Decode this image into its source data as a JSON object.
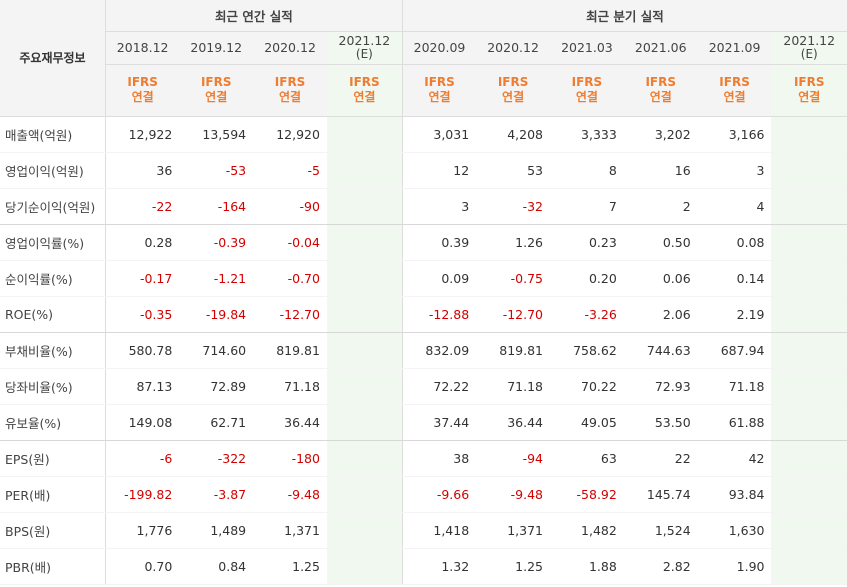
{
  "header": {
    "row_label": "주요재무정보",
    "annual_title": "최근 연간 실적",
    "quarter_title": "최근 분기 실적",
    "annual_periods": [
      {
        "label": "2018.12",
        "estimate": false
      },
      {
        "label": "2019.12",
        "estimate": false
      },
      {
        "label": "2020.12",
        "estimate": false
      },
      {
        "label": "2021.12",
        "est_mark": "(E)",
        "estimate": true
      }
    ],
    "quarter_periods": [
      {
        "label": "2020.09",
        "estimate": false
      },
      {
        "label": "2020.12",
        "estimate": false
      },
      {
        "label": "2021.03",
        "estimate": false
      },
      {
        "label": "2021.06",
        "estimate": false
      },
      {
        "label": "2021.09",
        "estimate": false
      },
      {
        "label": "2021.12",
        "est_mark": "(E)",
        "estimate": true
      }
    ],
    "standard_line1": "IFRS",
    "standard_line2": "연결"
  },
  "colors": {
    "negative": "#d30000",
    "standard": "#ee7d31",
    "estimate_bg": "#f1f8ef"
  },
  "rows": [
    {
      "label": "매출액(억원)",
      "annual": [
        "12,922",
        "13,594",
        "12,920",
        ""
      ],
      "quarter": [
        "3,031",
        "4,208",
        "3,333",
        "3,202",
        "3,166",
        ""
      ]
    },
    {
      "label": "영업이익(억원)",
      "annual": [
        "36",
        "-53",
        "-5",
        ""
      ],
      "quarter": [
        "12",
        "53",
        "8",
        "16",
        "3",
        ""
      ]
    },
    {
      "label": "당기순이익(억원)",
      "annual": [
        "-22",
        "-164",
        "-90",
        ""
      ],
      "quarter": [
        "3",
        "-32",
        "7",
        "2",
        "4",
        ""
      ]
    },
    {
      "label": "영업이익률(%)",
      "annual": [
        "0.28",
        "-0.39",
        "-0.04",
        ""
      ],
      "quarter": [
        "0.39",
        "1.26",
        "0.23",
        "0.50",
        "0.08",
        ""
      ]
    },
    {
      "label": "순이익률(%)",
      "annual": [
        "-0.17",
        "-1.21",
        "-0.70",
        ""
      ],
      "quarter": [
        "0.09",
        "-0.75",
        "0.20",
        "0.06",
        "0.14",
        ""
      ]
    },
    {
      "label": "ROE(%)",
      "annual": [
        "-0.35",
        "-19.84",
        "-12.70",
        ""
      ],
      "quarter": [
        "-12.88",
        "-12.70",
        "-3.26",
        "2.06",
        "2.19",
        ""
      ]
    },
    {
      "label": "부채비율(%)",
      "annual": [
        "580.78",
        "714.60",
        "819.81",
        ""
      ],
      "quarter": [
        "832.09",
        "819.81",
        "758.62",
        "744.63",
        "687.94",
        ""
      ]
    },
    {
      "label": "당좌비율(%)",
      "annual": [
        "87.13",
        "72.89",
        "71.18",
        ""
      ],
      "quarter": [
        "72.22",
        "71.18",
        "70.22",
        "72.93",
        "71.18",
        ""
      ]
    },
    {
      "label": "유보율(%)",
      "annual": [
        "149.08",
        "62.71",
        "36.44",
        ""
      ],
      "quarter": [
        "37.44",
        "36.44",
        "49.05",
        "53.50",
        "61.88",
        ""
      ]
    },
    {
      "label": "EPS(원)",
      "annual": [
        "-6",
        "-322",
        "-180",
        ""
      ],
      "quarter": [
        "38",
        "-94",
        "63",
        "22",
        "42",
        ""
      ]
    },
    {
      "label": "PER(배)",
      "annual": [
        "-199.82",
        "-3.87",
        "-9.48",
        ""
      ],
      "quarter": [
        "-9.66",
        "-9.48",
        "-58.92",
        "145.74",
        "93.84",
        ""
      ]
    },
    {
      "label": "BPS(원)",
      "annual": [
        "1,776",
        "1,489",
        "1,371",
        ""
      ],
      "quarter": [
        "1,418",
        "1,371",
        "1,482",
        "1,524",
        "1,630",
        ""
      ]
    },
    {
      "label": "PBR(배)",
      "annual": [
        "0.70",
        "0.84",
        "1.25",
        ""
      ],
      "quarter": [
        "1.32",
        "1.25",
        "1.88",
        "2.82",
        "1.90",
        ""
      ]
    }
  ]
}
